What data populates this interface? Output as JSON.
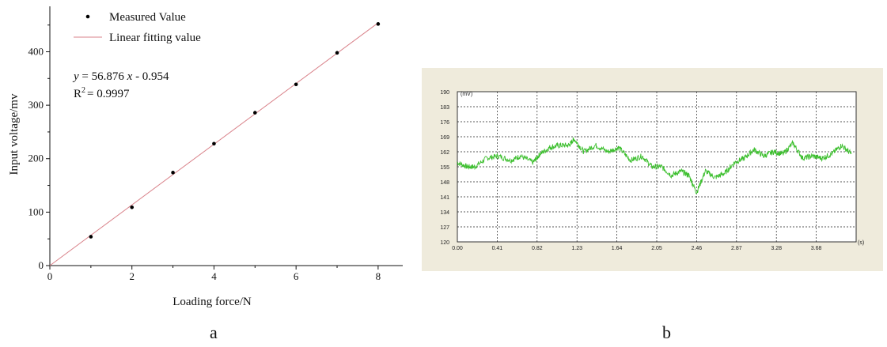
{
  "chart_data": [
    {
      "type": "scatter",
      "panel_label": "a",
      "xlabel": "Loading force/N",
      "ylabel": "Input voltage/mv",
      "xlim": [
        0,
        8.6
      ],
      "ylim": [
        0,
        485
      ],
      "x_ticks": [
        "0",
        "2",
        "4",
        "6",
        "8"
      ],
      "x_tick_values": [
        0,
        2,
        4,
        6,
        8
      ],
      "y_ticks": [
        "0",
        "100",
        "200",
        "300",
        "400"
      ],
      "y_tick_values": [
        0,
        100,
        200,
        300,
        400
      ],
      "series": [
        {
          "name": "Measured Value",
          "kind": "points",
          "color": "#000000",
          "x": [
            1,
            2,
            3,
            4,
            5,
            6,
            7,
            8
          ],
          "y": [
            54,
            109,
            174,
            228,
            286,
            339,
            398,
            452
          ]
        },
        {
          "name": "Linear fitting value",
          "kind": "line",
          "color": "#d9828a",
          "x": [
            0,
            8
          ],
          "y": [
            -0.954,
            454.054
          ]
        }
      ],
      "equation": {
        "y": "y",
        "rhs": "= 56.876",
        "x": "x",
        "tail": "- 0.954"
      },
      "r2": {
        "r": "R",
        "sup": "2",
        "val": "= 0.9997"
      },
      "legend_position": "top-left"
    },
    {
      "type": "line",
      "panel_label": "b",
      "unit_y": "(mV)",
      "unit_x": "(s)",
      "ylim": [
        120,
        190
      ],
      "xlim": [
        0,
        4.1
      ],
      "y_ticks": [
        "190",
        "183",
        "176",
        "169",
        "162",
        "155",
        "148",
        "141",
        "134",
        "127",
        "120"
      ],
      "y_tick_values": [
        190,
        183,
        176,
        169,
        162,
        155,
        148,
        141,
        134,
        127,
        120
      ],
      "x_ticks": [
        "0.00",
        "0.41",
        "0.82",
        "1.23",
        "1.64",
        "2.05",
        "2.46",
        "2.87",
        "3.28",
        "3.68"
      ],
      "x_tick_values": [
        0,
        0.41,
        0.82,
        1.23,
        1.64,
        2.05,
        2.46,
        2.87,
        3.28,
        3.69
      ],
      "grid": true,
      "series": [
        {
          "color": "#3cbf2e",
          "x": [
            0,
            0.1,
            0.18,
            0.3,
            0.42,
            0.55,
            0.65,
            0.78,
            0.85,
            0.95,
            1.05,
            1.15,
            1.2,
            1.3,
            1.42,
            1.55,
            1.66,
            1.78,
            1.9,
            2.0,
            2.1,
            2.2,
            2.3,
            2.38,
            2.46,
            2.55,
            2.65,
            2.75,
            2.85,
            2.95,
            3.05,
            3.15,
            3.25,
            3.35,
            3.45,
            3.55,
            3.65,
            3.75,
            3.85,
            3.95,
            4.05
          ],
          "y": [
            157,
            155,
            155,
            159,
            160,
            158,
            160,
            157,
            161,
            164,
            165,
            165,
            168,
            162,
            165,
            162,
            164,
            158,
            160,
            155,
            155,
            151,
            153,
            151,
            143,
            153,
            150,
            152,
            157,
            159,
            163,
            160,
            162,
            161,
            166,
            159,
            160,
            159,
            161,
            165,
            161
          ]
        }
      ],
      "background_color": "#efebdc",
      "plot_color": "#ffffff"
    }
  ]
}
